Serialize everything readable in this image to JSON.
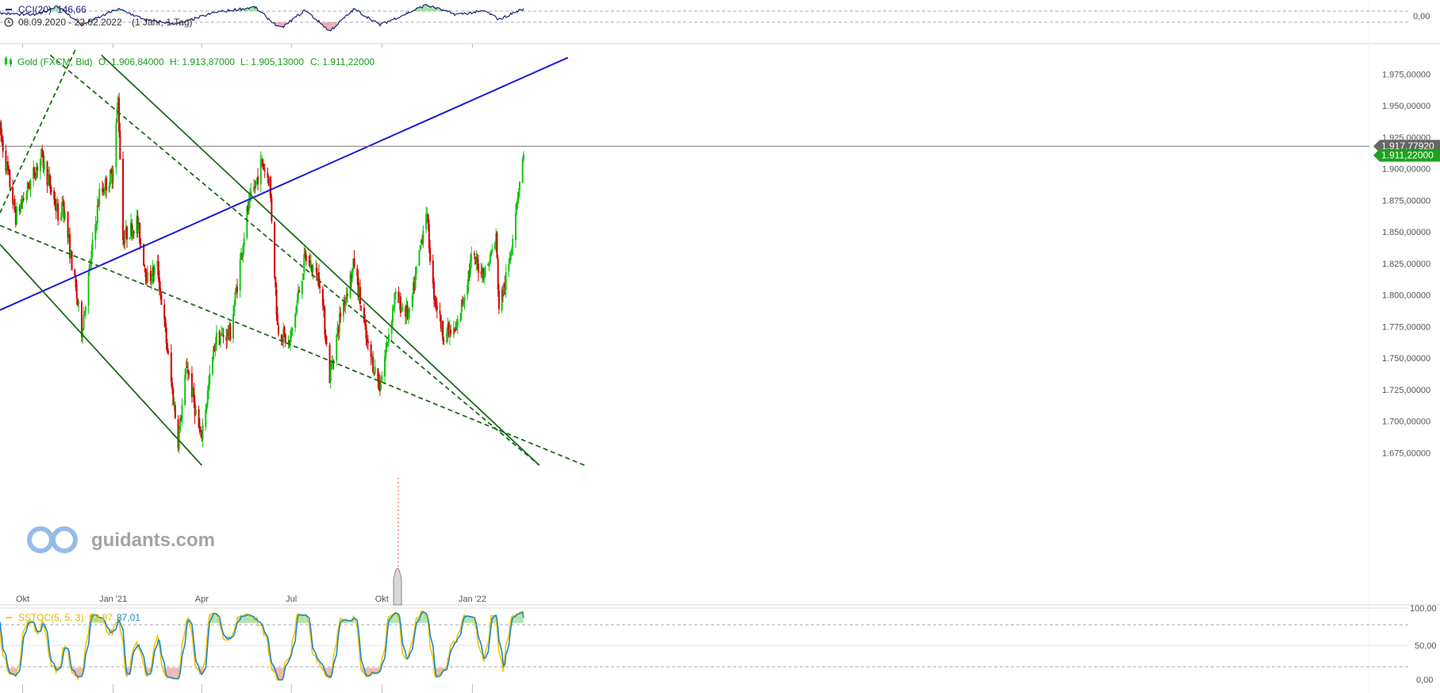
{
  "colors": {
    "up": "#13c413",
    "down": "#d40000",
    "trend_green": "#1c6b1c",
    "trend_blue": "#1a1adc",
    "cci_line": "#1a237e",
    "stoch_k": "#f7c600",
    "stoch_d": "#1e88c8",
    "last_price_tag": "#1fa01f",
    "ref_tag": "#666666",
    "divider": "#d6d6d6",
    "grid_dashed": "#aaaaaa"
  },
  "icons": [
    "clock-icon",
    "candlestick-icon",
    "guidants-logo-icon"
  ],
  "cci_panel": {
    "label": "CCI(20)",
    "value": "146,66",
    "date_range": "08.09.2020 - 22.02.2022",
    "interval": "(1 Jahr, 1 Tag)",
    "axis_label": "0,00"
  },
  "main_panel": {
    "instrument": "Gold (FXCM, Bid)",
    "ohlc": {
      "open": "O: 1.906,84000",
      "high": "H: 1.913,87000",
      "low": "L: 1.905,13000",
      "close": "C: 1.911,22000"
    },
    "ref_price_tag": "1.917,77920",
    "last_price_tag": "1.911,22000"
  },
  "stoch_panel": {
    "label": "SSTOC(5, 5, 3)",
    "k_value": "92,87",
    "d_value": "87,01"
  },
  "watermark": "guidants.com",
  "chart_data": {
    "type": "candlestick",
    "instrument": "Gold (FXCM, Bid)",
    "x_range": [
      "2020-09-08",
      "2022-02-22"
    ],
    "x_tick_labels": [
      "Okt",
      "Jan '21",
      "Apr",
      "Jul",
      "Okt",
      "Jan '22"
    ],
    "y_tick_labels": [
      "1.975,00000",
      "1.950,00000",
      "1.925,00000",
      "1.900,00000",
      "1.875,00000",
      "1.850,00000",
      "1.825,00000",
      "1.800,00000",
      "1.775,00000",
      "1.750,00000",
      "1.725,00000",
      "1.700,00000",
      "1.675,00000"
    ],
    "ylim": [
      1665,
      1995
    ],
    "anchors": [
      {
        "date": "2020-09-08",
        "close": 1930
      },
      {
        "date": "2020-09-24",
        "close": 1862
      },
      {
        "date": "2020-10-20",
        "close": 1910
      },
      {
        "date": "2020-11-09",
        "close": 1856
      },
      {
        "date": "2020-11-10",
        "close": 1878
      },
      {
        "date": "2020-11-30",
        "close": 1772
      },
      {
        "date": "2020-12-18",
        "close": 1880
      },
      {
        "date": "2020-12-31",
        "close": 1895
      },
      {
        "date": "2021-01-06",
        "close": 1955
      },
      {
        "date": "2021-01-11",
        "close": 1845
      },
      {
        "date": "2021-01-25",
        "close": 1858
      },
      {
        "date": "2021-02-05",
        "close": 1812
      },
      {
        "date": "2021-02-15",
        "close": 1822
      },
      {
        "date": "2021-03-08",
        "close": 1685
      },
      {
        "date": "2021-03-17",
        "close": 1745
      },
      {
        "date": "2021-03-31",
        "close": 1685
      },
      {
        "date": "2021-04-15",
        "close": 1765
      },
      {
        "date": "2021-04-30",
        "close": 1770
      },
      {
        "date": "2021-05-17",
        "close": 1865
      },
      {
        "date": "2021-06-01",
        "close": 1905
      },
      {
        "date": "2021-06-09",
        "close": 1890
      },
      {
        "date": "2021-06-17",
        "close": 1775
      },
      {
        "date": "2021-06-29",
        "close": 1760
      },
      {
        "date": "2021-07-15",
        "close": 1830
      },
      {
        "date": "2021-07-30",
        "close": 1812
      },
      {
        "date": "2021-08-06",
        "close": 1760
      },
      {
        "date": "2021-08-09",
        "close": 1735
      },
      {
        "date": "2021-08-20",
        "close": 1785
      },
      {
        "date": "2021-09-03",
        "close": 1825
      },
      {
        "date": "2021-09-16",
        "close": 1760
      },
      {
        "date": "2021-09-29",
        "close": 1728
      },
      {
        "date": "2021-10-14",
        "close": 1798
      },
      {
        "date": "2021-10-29",
        "close": 1783
      },
      {
        "date": "2021-11-05",
        "close": 1818
      },
      {
        "date": "2021-11-15",
        "close": 1868
      },
      {
        "date": "2021-11-22",
        "close": 1805
      },
      {
        "date": "2021-12-02",
        "close": 1770
      },
      {
        "date": "2021-12-15",
        "close": 1770
      },
      {
        "date": "2021-12-31",
        "close": 1828
      },
      {
        "date": "2022-01-14",
        "close": 1818
      },
      {
        "date": "2022-01-25",
        "close": 1845
      },
      {
        "date": "2022-01-28",
        "close": 1790
      },
      {
        "date": "2022-02-07",
        "close": 1822
      },
      {
        "date": "2022-02-14",
        "close": 1870
      },
      {
        "date": "2022-02-22",
        "close": 1911.22
      }
    ],
    "last_candle": {
      "open": 1906.84,
      "high": 1913.87,
      "low": 1905.13,
      "close": 1911.22
    },
    "reference_price": 1917.7792,
    "trendlines": [
      {
        "name": "blue-uptrend",
        "style": "solid",
        "color": "#1a1adc",
        "p1": {
          "date": "2020-09-08",
          "price": 1788
        },
        "p2": {
          "date": "2022-04-08",
          "price": 1988
        }
      },
      {
        "name": "green-lower-channel",
        "style": "solid",
        "color": "#1c6b1c",
        "p1": {
          "date": "2020-09-08",
          "price": 1840
        },
        "p2": {
          "date": "2021-04-01",
          "price": 1665
        }
      },
      {
        "name": "green-upper-channel",
        "style": "solid",
        "color": "#1c6b1c",
        "p1": {
          "date": "2020-12-20",
          "price": 1990
        },
        "p2": {
          "date": "2022-03-10",
          "price": 1665
        }
      },
      {
        "name": "green-dashed-1",
        "style": "dashed",
        "color": "#1c6b1c",
        "p1": {
          "date": "2020-10-29",
          "price": 1990
        },
        "p2": {
          "date": "2022-03-10",
          "price": 1665
        }
      },
      {
        "name": "green-dashed-2",
        "style": "dashed",
        "color": "#1c6b1c",
        "p1": {
          "date": "2020-09-08",
          "price": 1855
        },
        "p2": {
          "date": "2022-04-25",
          "price": 1665
        }
      },
      {
        "name": "green-dashed-3",
        "style": "dashed",
        "color": "#1c6b1c",
        "p1": {
          "date": "2020-09-08",
          "price": 1865
        },
        "p2": {
          "date": "2020-11-24",
          "price": 1995
        }
      }
    ],
    "cci": {
      "name": "CCI(20)",
      "last": 146.66,
      "axis_ticks": [
        "0,00"
      ],
      "level_lines": [
        100,
        -100
      ],
      "anchors": [
        {
          "date": "2020-09-08",
          "value": 60
        },
        {
          "date": "2020-10-15",
          "value": 30
        },
        {
          "date": "2020-11-05",
          "value": 200
        },
        {
          "date": "2020-11-30",
          "value": -150
        },
        {
          "date": "2021-01-06",
          "value": 140
        },
        {
          "date": "2021-02-05",
          "value": -70
        },
        {
          "date": "2021-03-08",
          "value": -130
        },
        {
          "date": "2021-04-15",
          "value": 80
        },
        {
          "date": "2021-05-25",
          "value": 170
        },
        {
          "date": "2021-06-20",
          "value": -220
        },
        {
          "date": "2021-07-15",
          "value": 120
        },
        {
          "date": "2021-08-09",
          "value": -260
        },
        {
          "date": "2021-09-03",
          "value": 140
        },
        {
          "date": "2021-09-29",
          "value": -150
        },
        {
          "date": "2021-11-15",
          "value": 210
        },
        {
          "date": "2021-12-15",
          "value": 40
        },
        {
          "date": "2022-01-14",
          "value": 100
        },
        {
          "date": "2022-01-28",
          "value": -50
        },
        {
          "date": "2022-02-22",
          "value": 146.66
        }
      ]
    },
    "stochastic": {
      "name": "SSTOC(5, 5, 3)",
      "k_last": 92.87,
      "d_last": 87.01,
      "axis_ticks": [
        "100,00",
        "50,00",
        "0,00"
      ],
      "level_lines": [
        80,
        20
      ],
      "ylim": [
        0,
        100
      ]
    }
  }
}
